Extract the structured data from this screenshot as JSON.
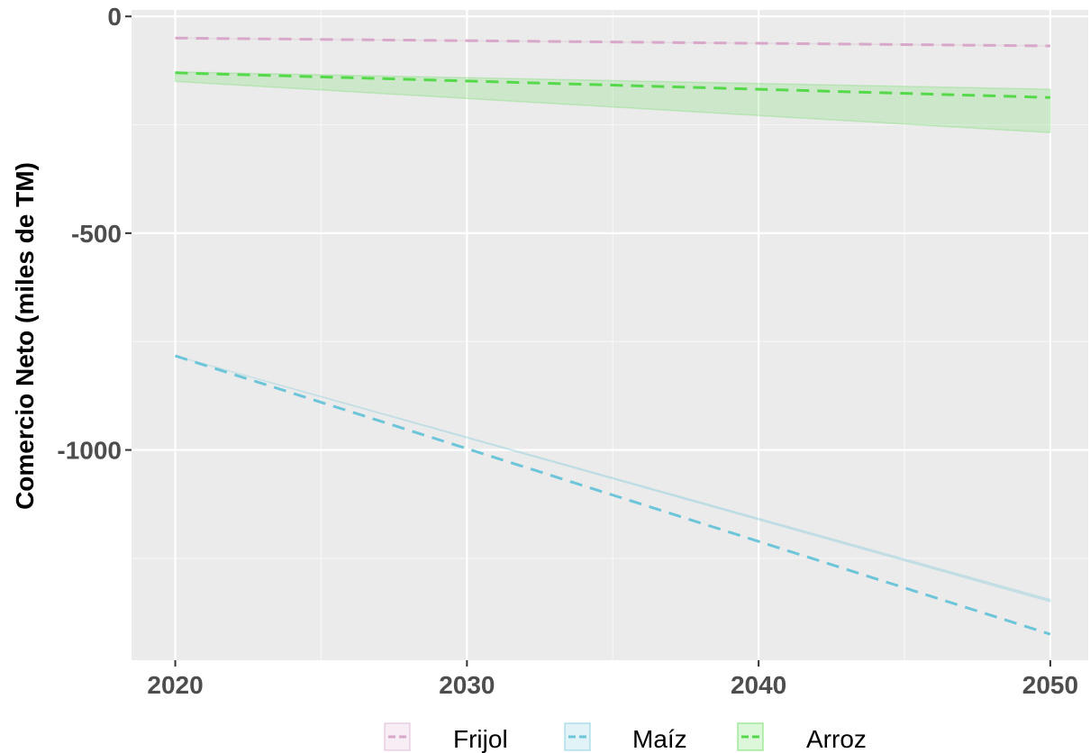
{
  "chart_data": {
    "type": "line",
    "title": "",
    "xlabel": "",
    "ylabel": "Comercio Neto (miles de TM)",
    "xlim": [
      2018.5,
      2051.3
    ],
    "ylim": [
      -1485,
      15
    ],
    "x_ticks": [
      2020,
      2030,
      2040,
      2050
    ],
    "y_ticks": [
      0,
      -500,
      -1000
    ],
    "x_tick_labels": [
      "2020",
      "2030",
      "2040",
      "2050"
    ],
    "y_tick_labels": [
      "0",
      "-500",
      "-1000"
    ],
    "grid": true,
    "legend_position": "bottom",
    "series": [
      {
        "name": "Frijol",
        "color": "#d8a7c9",
        "x": [
          2020,
          2050
        ],
        "values": [
          -50,
          -68
        ],
        "band_lower": [
          -50,
          -68
        ],
        "band_upper": [
          -50,
          -68
        ]
      },
      {
        "name": "Maíz",
        "color": "#6cc5d9",
        "x": [
          2020,
          2050
        ],
        "values": [
          -783,
          -1425
        ],
        "band_lower": [
          -783,
          -1350
        ],
        "band_upper": [
          -783,
          -1345
        ]
      },
      {
        "name": "Arroz",
        "color": "#55d94a",
        "x": [
          2020,
          2050
        ],
        "values": [
          -130,
          -187
        ],
        "band_lower": [
          -150,
          -268
        ],
        "band_upper": [
          -128,
          -168
        ]
      }
    ]
  }
}
